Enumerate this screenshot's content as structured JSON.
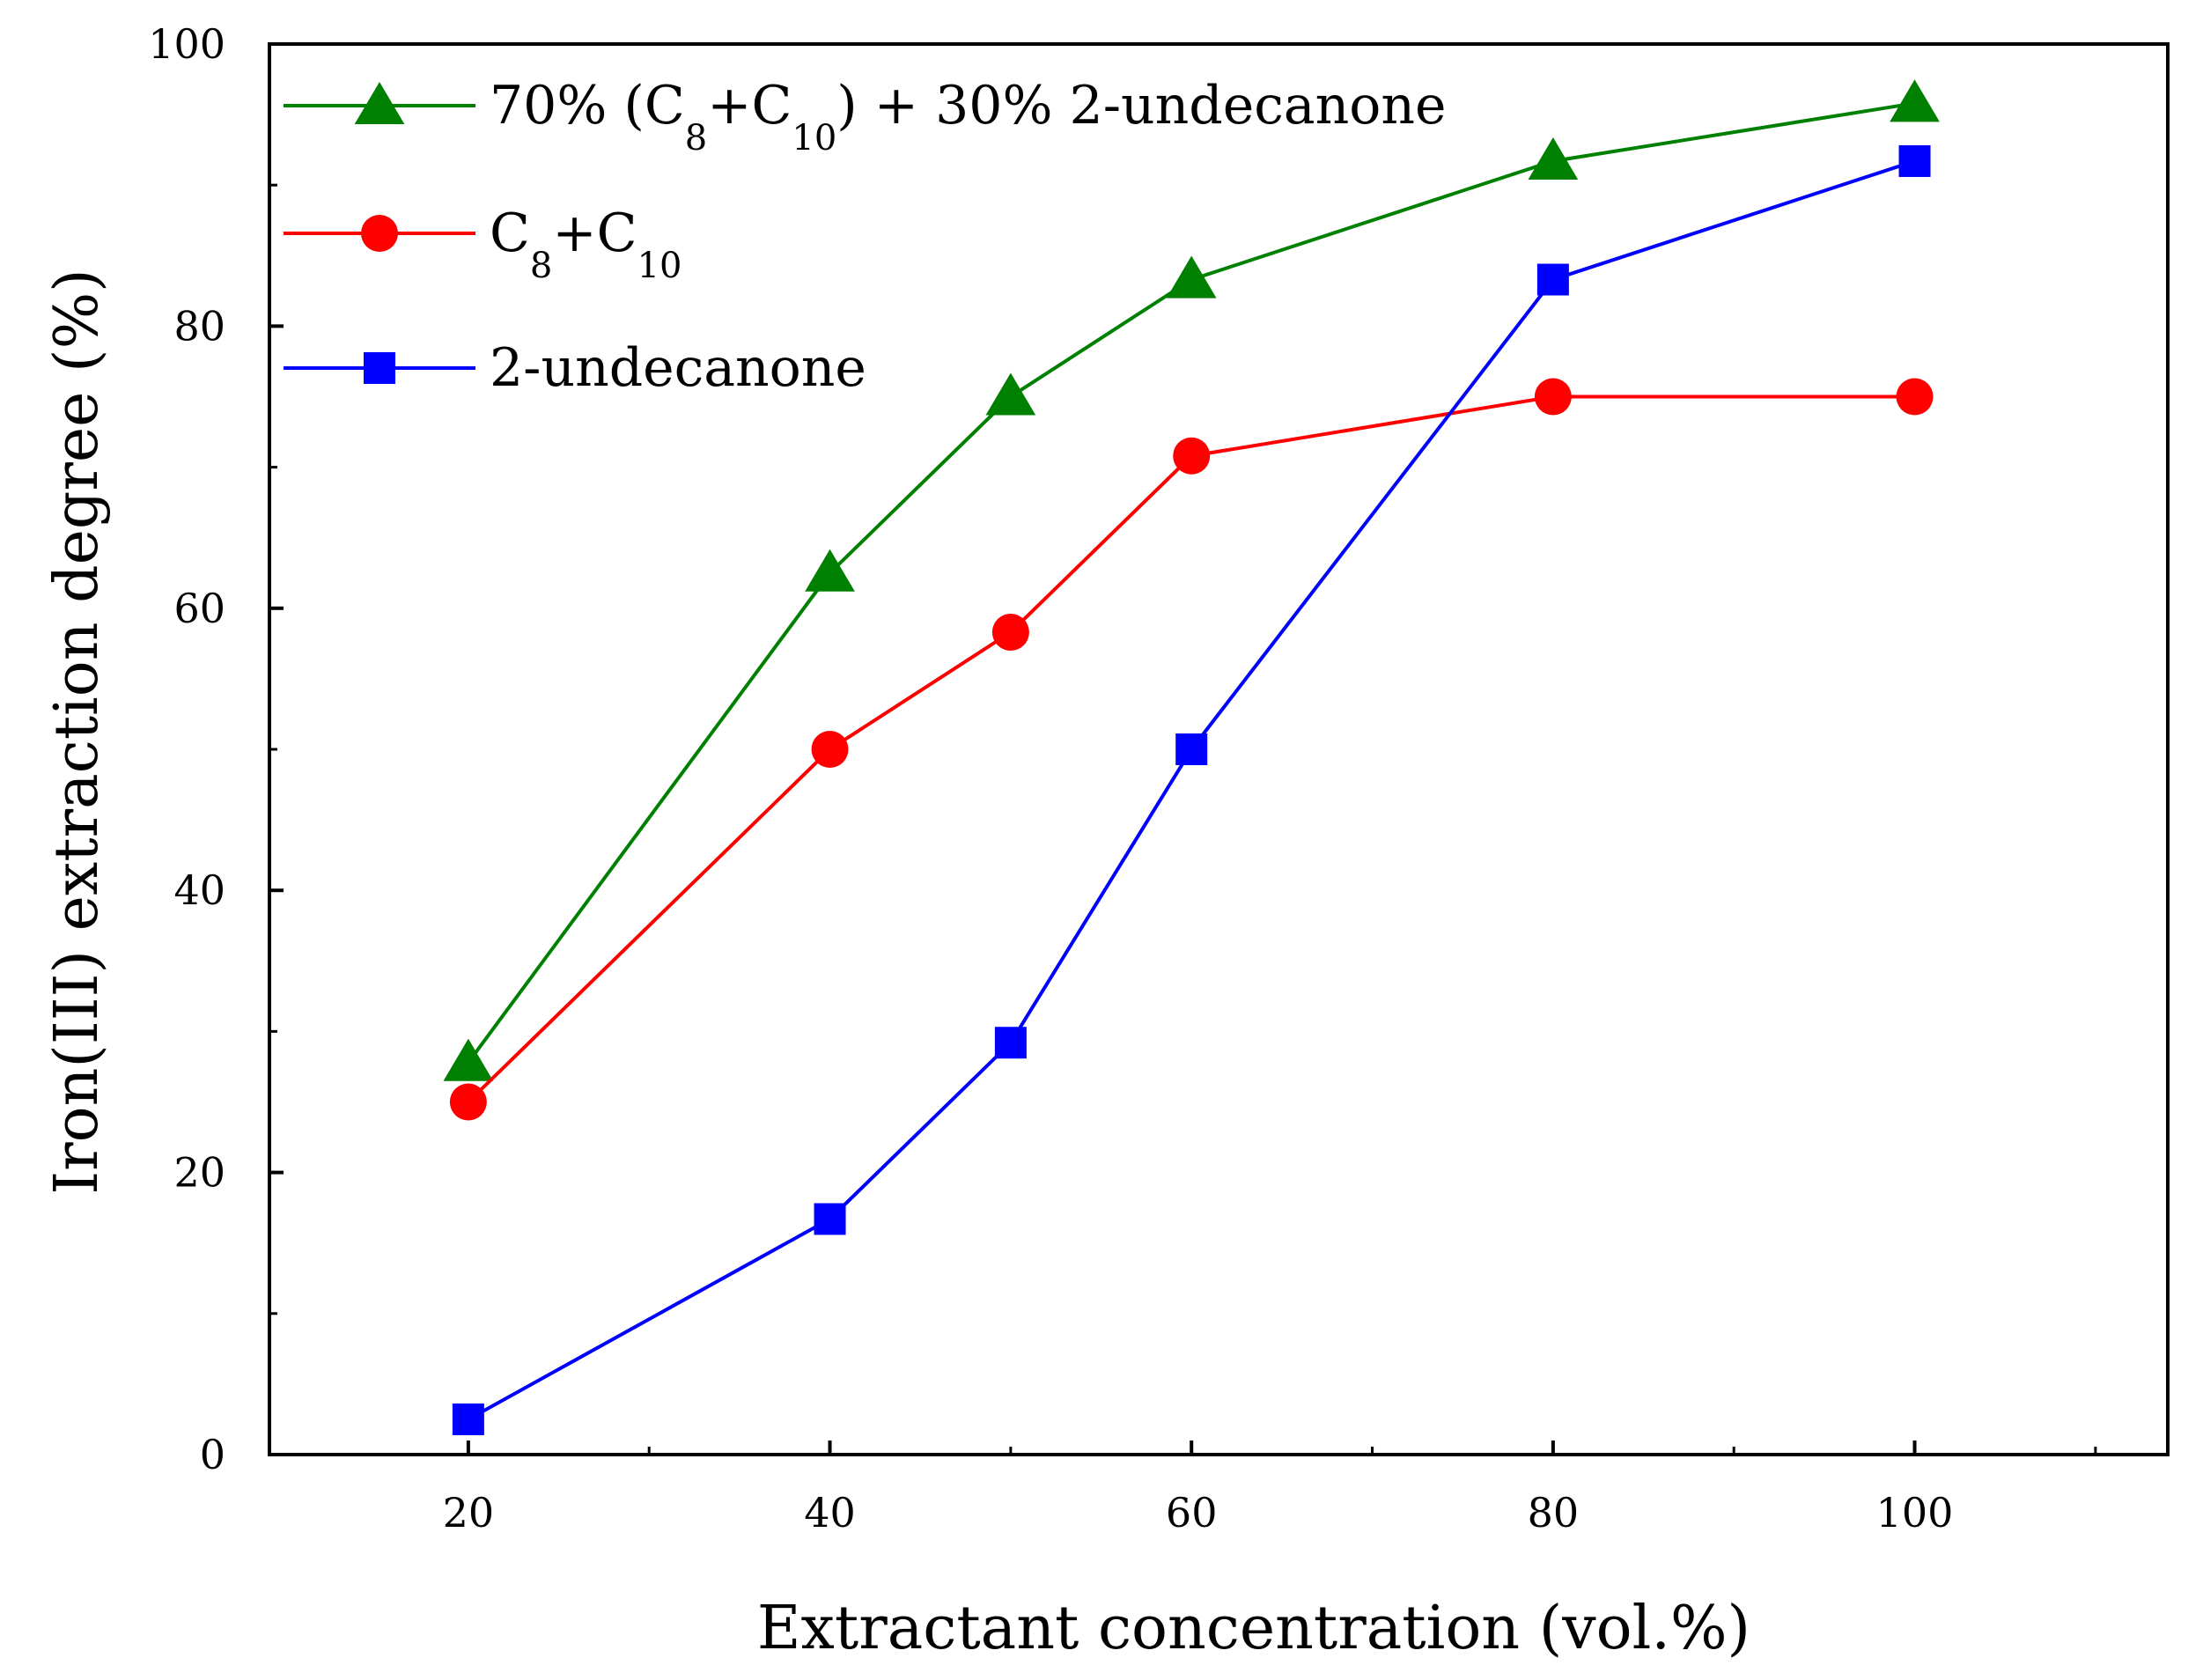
{
  "chart_data": {
    "type": "line",
    "title": "",
    "xlabel": "Extractant concentration (vol.%)",
    "ylabel": "Iron(III) extraction degree (%)",
    "xlim": [
      9,
      114
    ],
    "ylim": [
      0,
      100
    ],
    "x": [
      20,
      40,
      50,
      60,
      80,
      100
    ],
    "xticks": [
      20,
      40,
      60,
      80,
      100
    ],
    "yticks": [
      0,
      20,
      40,
      60,
      80,
      100
    ],
    "grid": false,
    "legend_position": "top-left",
    "series": [
      {
        "id": "mix",
        "name": "70% (C8+C10) + 30% 2-undecanone",
        "legend": [
          {
            "text": "70% (C",
            "role": "normal"
          },
          {
            "text": "8",
            "role": "sub"
          },
          {
            "text": "+C",
            "role": "normal"
          },
          {
            "text": "10",
            "role": "sub"
          },
          {
            "text": ") + 30% 2-undecanone",
            "role": "normal"
          }
        ],
        "color": "#008000",
        "marker": "triangle",
        "values": [
          27.8,
          62.5,
          75.0,
          83.3,
          91.7,
          95.8
        ]
      },
      {
        "id": "c8c10",
        "name": "C8+C10",
        "legend": [
          {
            "text": "C",
            "role": "normal"
          },
          {
            "text": "8",
            "role": "sub"
          },
          {
            "text": "+C",
            "role": "normal"
          },
          {
            "text": "10",
            "role": "sub"
          }
        ],
        "color": "#ff0000",
        "marker": "circle",
        "values": [
          25.0,
          50.0,
          58.3,
          70.8,
          75.0,
          75.0
        ]
      },
      {
        "id": "undecanone",
        "name": "2-undecanone",
        "legend": [
          {
            "text": "2-undecanone",
            "role": "normal"
          }
        ],
        "color": "#0000ff",
        "marker": "square",
        "values": [
          2.5,
          16.7,
          29.2,
          50.0,
          83.3,
          91.7
        ]
      }
    ]
  }
}
